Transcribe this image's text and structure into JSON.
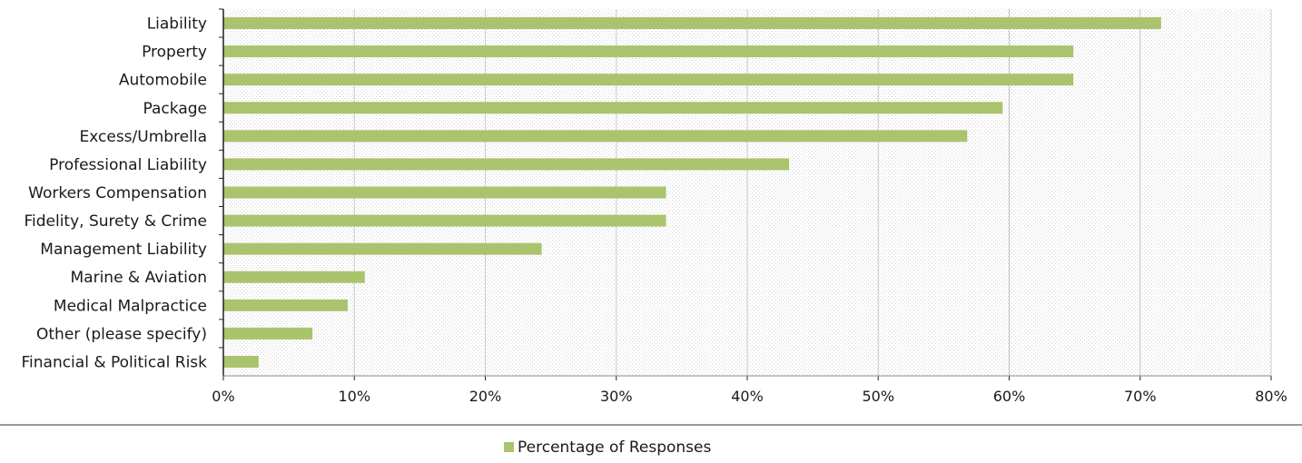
{
  "chart_data": {
    "type": "bar",
    "orientation": "horizontal",
    "categories": [
      "Liability",
      "Property",
      "Automobile",
      "Package",
      "Excess/Umbrella",
      "Professional Liability",
      "Workers Compensation",
      "Fidelity, Surety & Crime",
      "Management Liability",
      "Marine & Aviation",
      "Medical Malpractice",
      "Other (please specify)",
      "Financial & Political Risk"
    ],
    "series": [
      {
        "name": "Percentage of Responses",
        "values": [
          71.6,
          64.9,
          64.9,
          59.5,
          56.8,
          43.2,
          33.8,
          33.8,
          24.3,
          10.8,
          9.5,
          6.8,
          2.7
        ],
        "color": "#a9c46c"
      }
    ],
    "x_ticks": [
      "0%",
      "10%",
      "20%",
      "30%",
      "40%",
      "50%",
      "60%",
      "70%",
      "80%"
    ],
    "xlim": [
      0,
      80
    ],
    "grid": "vertical",
    "legend_position": "bottom"
  },
  "colors": {
    "bar": "#a9c46c",
    "grid": "#c8c8c8",
    "plot_bg_pattern": "#d9d9d9",
    "axis": "#222222"
  }
}
